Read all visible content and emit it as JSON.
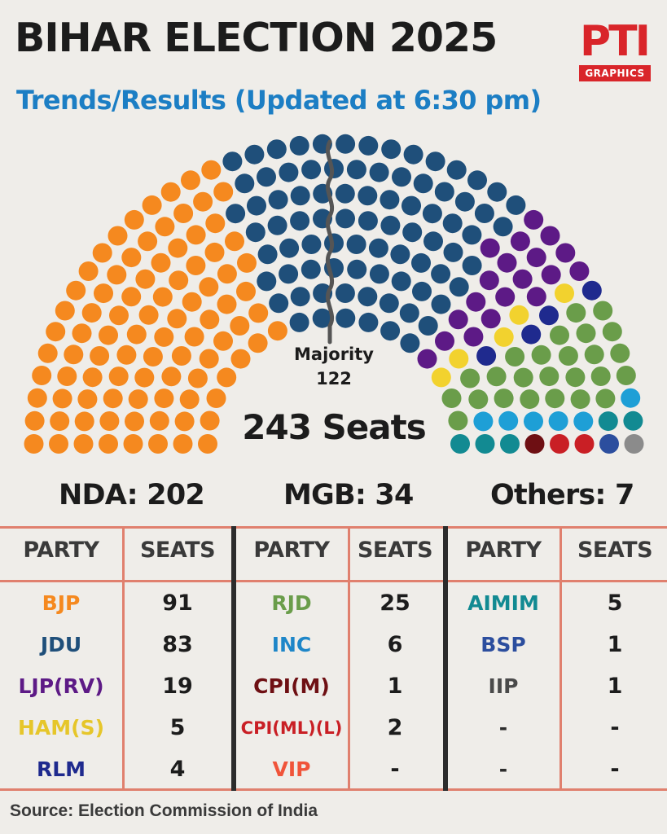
{
  "header": {
    "title": "BIHAR ELECTION 2025",
    "subtitle": "Trends/Results (Updated at 6:30 pm)",
    "logo_mark": "PTI",
    "logo_tag": "GRAPHICS"
  },
  "chart_data": {
    "type": "hemicycle",
    "total_label": "243 Seats",
    "total_seats": 243,
    "majority_label": "Majority",
    "majority_value": "122",
    "parties": [
      {
        "name": "BJP",
        "seats": 91,
        "color": "#f5891f"
      },
      {
        "name": "JDU",
        "seats": 83,
        "color": "#1f4f7a"
      },
      {
        "name": "LJP(RV)",
        "seats": 19,
        "color": "#5d1a86"
      },
      {
        "name": "HAM(S)",
        "seats": 5,
        "color": "#f2d22e"
      },
      {
        "name": "RLM",
        "seats": 4,
        "color": "#1f2a8e"
      },
      {
        "name": "RJD",
        "seats": 25,
        "color": "#6a9d4a"
      },
      {
        "name": "INC",
        "seats": 6,
        "color": "#1e9fd6"
      },
      {
        "name": "AIMIM",
        "seats": 5,
        "color": "#128a92"
      },
      {
        "name": "CPI(M)",
        "seats": 1,
        "color": "#6e0f13"
      },
      {
        "name": "CPI(ML)(L)",
        "seats": 2,
        "color": "#c91f25"
      },
      {
        "name": "BSP",
        "seats": 1,
        "color": "#2c4e9e"
      },
      {
        "name": "IIP",
        "seats": 1,
        "color": "#8b8b8b"
      }
    ]
  },
  "summary": {
    "nda": "NDA: 202",
    "mgb": "MGB: 34",
    "others": "Others: 7"
  },
  "table": {
    "header_party": "PARTY",
    "header_seats": "SEATS",
    "nda_rows": [
      {
        "party": "BJP",
        "seats": "91",
        "color": "#f5891f"
      },
      {
        "party": "JDU",
        "seats": "83",
        "color": "#1f4f7a"
      },
      {
        "party": "LJP(RV)",
        "seats": "19",
        "color": "#5d1a86"
      },
      {
        "party": "HAM(S)",
        "seats": "5",
        "color": "#e6c62a"
      },
      {
        "party": "RLM",
        "seats": "4",
        "color": "#1f2a8e"
      }
    ],
    "mgb_rows": [
      {
        "party": "RJD",
        "seats": "25",
        "color": "#6a9d4a"
      },
      {
        "party": "INC",
        "seats": "6",
        "color": "#1e86c8"
      },
      {
        "party": "CPI(M)",
        "seats": "1",
        "color": "#6e0f13"
      },
      {
        "party": "CPI(ML)(L)",
        "seats": "2",
        "color": "#c91f25"
      },
      {
        "party": "VIP",
        "seats": "-",
        "color": "#f0543a"
      }
    ],
    "others_rows": [
      {
        "party": "AIMIM",
        "seats": "5",
        "color": "#128a92"
      },
      {
        "party": "BSP",
        "seats": "1",
        "color": "#2c4e9e"
      },
      {
        "party": "IIP",
        "seats": "1",
        "color": "#4a4a4a"
      },
      {
        "party": "-",
        "seats": "-",
        "color": "#2c2c2c"
      },
      {
        "party": "-",
        "seats": "-",
        "color": "#2c2c2c"
      }
    ]
  },
  "source": "Source: Election Commission of India"
}
